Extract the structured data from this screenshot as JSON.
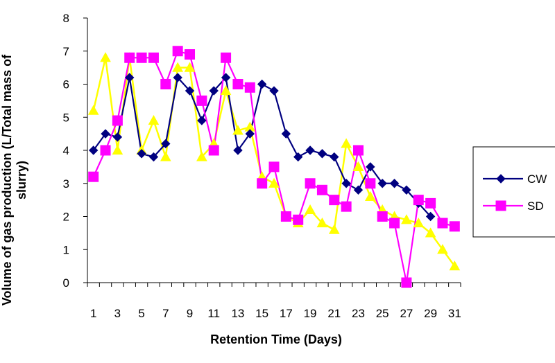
{
  "chart_data": {
    "type": "line",
    "title": "",
    "xlabel": "Retention Time (Days)",
    "ylabel_line1": "Volume of gas production (L/Total mass of",
    "ylabel_line2": "slurry)",
    "ylim": [
      0,
      8
    ],
    "yticks": [
      0,
      1,
      2,
      3,
      4,
      5,
      6,
      7,
      8
    ],
    "x": [
      1,
      2,
      3,
      4,
      5,
      6,
      7,
      8,
      9,
      10,
      11,
      12,
      13,
      14,
      15,
      16,
      17,
      18,
      19,
      20,
      21,
      22,
      23,
      24,
      25,
      26,
      27,
      28,
      29,
      30,
      31
    ],
    "xtick_labels": [
      "1",
      "3",
      "5",
      "7",
      "9",
      "11",
      "13",
      "15",
      "17",
      "19",
      "21",
      "23",
      "25",
      "27",
      "29",
      "31"
    ],
    "grid": false,
    "legend_placement": "right",
    "series": [
      {
        "name": "CW",
        "color": "#000080",
        "marker": "diamond",
        "values": [
          4.0,
          4.5,
          4.4,
          6.2,
          3.9,
          3.8,
          4.2,
          6.2,
          5.8,
          4.9,
          5.8,
          6.2,
          4.0,
          4.5,
          6.0,
          5.8,
          4.5,
          3.8,
          4.0,
          3.9,
          3.8,
          3.0,
          2.8,
          3.5,
          3.0,
          3.0,
          2.8,
          2.4,
          2.0,
          null,
          null
        ]
      },
      {
        "name": "SD",
        "color": "#FF00FF",
        "marker": "square",
        "values": [
          3.2,
          4.0,
          4.9,
          6.8,
          6.8,
          6.8,
          6.0,
          7.0,
          6.9,
          5.5,
          4.0,
          6.8,
          6.0,
          5.9,
          3.0,
          3.5,
          2.0,
          1.9,
          3.0,
          2.8,
          2.5,
          2.3,
          4.0,
          3.0,
          2.0,
          1.8,
          0.0,
          2.5,
          2.4,
          1.8,
          1.7
        ]
      },
      {
        "name": "",
        "color": "#FFFF00",
        "marker": "triangle",
        "values": [
          5.2,
          6.8,
          4.0,
          6.8,
          4.0,
          4.9,
          3.8,
          6.5,
          6.5,
          3.8,
          4.2,
          5.8,
          4.6,
          4.7,
          3.2,
          3.0,
          2.0,
          1.8,
          2.2,
          1.8,
          1.6,
          4.2,
          3.5,
          2.6,
          2.2,
          2.0,
          1.9,
          1.8,
          1.5,
          1.0,
          0.5
        ]
      }
    ]
  }
}
